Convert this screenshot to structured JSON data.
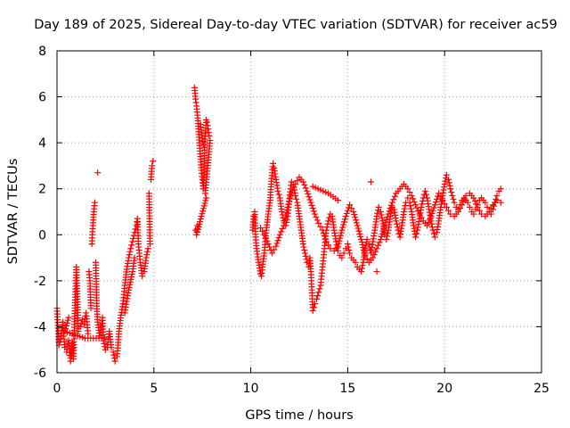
{
  "chart_data": {
    "type": "scatter",
    "title": "Day 189 of 2025, Sidereal Day-to-day VTEC variation (SDTVAR) for receiver ac59",
    "xlabel": "GPS time / hours",
    "ylabel": "SDTVAR / TECUs",
    "xlim": [
      0,
      25
    ],
    "ylim": [
      -6,
      8
    ],
    "xticks": [
      0,
      5,
      10,
      15,
      20,
      25
    ],
    "yticks": [
      -6,
      -4,
      -2,
      0,
      2,
      4,
      6,
      8
    ],
    "grid": true,
    "marker": "+",
    "color": "#ff0000",
    "series_segments": [
      [
        [
          0.0,
          -3.2
        ],
        [
          0.1,
          -4.8
        ],
        [
          0.2,
          -4.5
        ],
        [
          0.3,
          -3.8
        ],
        [
          0.4,
          -4.9
        ],
        [
          0.5,
          -5.1
        ],
        [
          0.6,
          -4.6
        ],
        [
          0.7,
          -5.5
        ],
        [
          0.75,
          -5.3
        ],
        [
          0.8,
          -4.7
        ],
        [
          0.85,
          -5.4
        ],
        [
          0.9,
          -3.9
        ],
        [
          0.95,
          -2.6
        ],
        [
          1.0,
          -1.4
        ],
        [
          1.05,
          -2.8
        ],
        [
          1.1,
          -4.2
        ],
        [
          1.2,
          -4.0
        ],
        [
          1.3,
          -3.7
        ],
        [
          1.4,
          -3.9
        ],
        [
          1.5,
          -3.4
        ],
        [
          1.6,
          -4.3
        ],
        [
          1.65,
          -1.6
        ],
        [
          1.7,
          -2.0
        ],
        [
          1.75,
          -3.2
        ],
        [
          1.8,
          -0.4
        ],
        [
          1.85,
          0.4
        ],
        [
          1.9,
          1.0
        ],
        [
          1.95,
          1.4
        ],
        [
          2.0,
          -1.2
        ],
        [
          2.05,
          -3.1
        ],
        [
          2.1,
          -3.8
        ],
        [
          2.2,
          -4.4
        ],
        [
          2.3,
          -4.0
        ],
        [
          2.35,
          -3.6
        ],
        [
          2.4,
          -4.6
        ],
        [
          2.5,
          -5.0
        ],
        [
          2.6,
          -4.9
        ],
        [
          2.7,
          -4.2
        ],
        [
          2.8,
          -4.9
        ],
        [
          2.9,
          -5.1
        ],
        [
          3.0,
          -5.5
        ],
        [
          3.1,
          -5.3
        ],
        [
          3.15,
          -4.8
        ],
        [
          3.2,
          -4.2
        ],
        [
          3.3,
          -3.5
        ],
        [
          3.4,
          -3.0
        ],
        [
          3.5,
          -2.2
        ],
        [
          3.6,
          -1.5
        ],
        [
          3.7,
          -1.0
        ],
        [
          3.8,
          -0.6
        ],
        [
          3.9,
          -0.3
        ],
        [
          4.0,
          0.1
        ],
        [
          4.1,
          0.4
        ],
        [
          4.15,
          0.7
        ],
        [
          4.2,
          -0.4
        ],
        [
          4.3,
          -1.2
        ],
        [
          4.4,
          -1.8
        ],
        [
          4.5,
          -1.6
        ],
        [
          4.6,
          -1.0
        ],
        [
          4.7,
          -0.6
        ],
        [
          4.75,
          1.8
        ],
        [
          4.8,
          -0.4
        ],
        [
          4.85,
          2.4
        ],
        [
          4.9,
          3.0
        ],
        [
          4.95,
          3.2
        ],
        [
          2.1,
          2.7
        ],
        [
          3.5,
          -3.4
        ],
        [
          3.7,
          -2.4
        ],
        [
          3.9,
          -1.6
        ],
        [
          4.0,
          -1.0
        ],
        [
          0.6,
          -3.6
        ],
        [
          0.4,
          -4.2
        ],
        [
          1.45,
          -4.5
        ],
        [
          2.45,
          -4.5
        ]
      ],
      [
        [
          7.1,
          6.4
        ],
        [
          7.15,
          5.9
        ],
        [
          7.2,
          5.6
        ],
        [
          7.25,
          5.2
        ],
        [
          7.3,
          4.6
        ],
        [
          7.35,
          4.0
        ],
        [
          7.4,
          3.4
        ],
        [
          7.45,
          2.8
        ],
        [
          7.5,
          2.4
        ],
        [
          7.55,
          2.0
        ],
        [
          7.6,
          3.2
        ],
        [
          7.65,
          4.4
        ],
        [
          7.7,
          5.0
        ],
        [
          7.75,
          4.9
        ],
        [
          7.8,
          4.6
        ],
        [
          7.85,
          4.3
        ],
        [
          7.9,
          4.1
        ],
        [
          7.65,
          1.8
        ],
        [
          7.7,
          1.6
        ],
        [
          7.2,
          0.0
        ],
        [
          7.25,
          0.4
        ],
        [
          7.15,
          0.2
        ],
        [
          7.4,
          4.8
        ],
        [
          7.5,
          4.2
        ],
        [
          7.6,
          3.8
        ]
      ],
      [
        [
          10.1,
          0.2
        ],
        [
          10.15,
          0.8
        ],
        [
          10.2,
          1.0
        ],
        [
          10.25,
          -0.1
        ],
        [
          10.3,
          -0.6
        ],
        [
          10.4,
          -1.2
        ],
        [
          10.5,
          -1.7
        ],
        [
          10.55,
          -1.8
        ],
        [
          10.6,
          -1.4
        ],
        [
          10.7,
          -0.8
        ],
        [
          10.8,
          0.2
        ],
        [
          10.9,
          0.9
        ],
        [
          11.0,
          1.5
        ],
        [
          11.05,
          2.2
        ],
        [
          11.1,
          2.7
        ],
        [
          11.15,
          3.1
        ],
        [
          11.2,
          2.9
        ],
        [
          11.3,
          2.4
        ],
        [
          11.4,
          1.9
        ],
        [
          11.5,
          1.6
        ],
        [
          11.6,
          1.0
        ],
        [
          11.7,
          0.6
        ],
        [
          11.8,
          0.4
        ],
        [
          11.9,
          0.8
        ],
        [
          12.0,
          1.6
        ],
        [
          12.05,
          2.0
        ],
        [
          12.1,
          2.3
        ],
        [
          12.2,
          2.2
        ],
        [
          12.3,
          1.7
        ],
        [
          12.4,
          1.4
        ],
        [
          12.5,
          0.8
        ],
        [
          12.6,
          0.2
        ],
        [
          12.7,
          -0.4
        ],
        [
          12.8,
          -0.8
        ],
        [
          12.9,
          -1.2
        ],
        [
          13.0,
          -1.4
        ],
        [
          13.05,
          -1.0
        ],
        [
          13.1,
          -1.6
        ],
        [
          13.15,
          -2.4
        ],
        [
          13.2,
          -3.3
        ],
        [
          13.3,
          -3.0
        ],
        [
          13.4,
          -2.8
        ],
        [
          13.5,
          -2.5
        ],
        [
          13.6,
          -2.2
        ],
        [
          13.7,
          -1.4
        ],
        [
          13.8,
          -0.6
        ],
        [
          13.9,
          0.2
        ],
        [
          14.0,
          0.6
        ],
        [
          14.1,
          0.9
        ],
        [
          14.2,
          0.8
        ],
        [
          14.3,
          0.2
        ],
        [
          14.4,
          -0.3
        ],
        [
          14.5,
          -0.7
        ],
        [
          14.6,
          -0.9
        ],
        [
          14.7,
          -1.0
        ],
        [
          14.8,
          -0.8
        ],
        [
          14.9,
          -0.6
        ],
        [
          15.0,
          -0.4
        ],
        [
          15.1,
          -0.8
        ],
        [
          15.2,
          -1.0
        ],
        [
          15.3,
          -1.1
        ],
        [
          15.4,
          -1.2
        ],
        [
          15.5,
          -1.4
        ],
        [
          15.6,
          -1.5
        ],
        [
          15.7,
          -1.6
        ],
        [
          15.8,
          -1.2
        ],
        [
          15.9,
          -0.6
        ],
        [
          16.0,
          -0.2
        ],
        [
          16.1,
          -0.4
        ],
        [
          16.2,
          -0.8
        ],
        [
          16.3,
          -0.3
        ],
        [
          16.4,
          0.2
        ],
        [
          16.5,
          0.8
        ],
        [
          16.6,
          1.2
        ],
        [
          16.7,
          1.0
        ],
        [
          16.8,
          0.6
        ],
        [
          16.9,
          0.0
        ],
        [
          17.0,
          -0.2
        ],
        [
          17.1,
          0.2
        ],
        [
          17.2,
          0.8
        ],
        [
          17.3,
          1.2
        ],
        [
          17.4,
          1.1
        ],
        [
          17.5,
          0.6
        ],
        [
          17.6,
          0.2
        ],
        [
          17.7,
          -0.1
        ],
        [
          17.8,
          0.4
        ],
        [
          17.9,
          1.0
        ],
        [
          18.0,
          1.4
        ],
        [
          18.1,
          1.6
        ],
        [
          18.2,
          1.4
        ],
        [
          18.3,
          1.0
        ],
        [
          18.4,
          0.4
        ],
        [
          18.5,
          -0.1
        ],
        [
          18.6,
          0.2
        ],
        [
          18.7,
          0.7
        ],
        [
          18.8,
          1.2
        ],
        [
          18.9,
          1.6
        ],
        [
          19.0,
          1.9
        ],
        [
          19.1,
          1.6
        ],
        [
          19.2,
          1.1
        ],
        [
          19.3,
          0.6
        ],
        [
          19.4,
          0.2
        ],
        [
          19.5,
          -0.1
        ],
        [
          19.6,
          0.1
        ],
        [
          19.7,
          0.6
        ],
        [
          19.8,
          1.2
        ],
        [
          19.9,
          1.7
        ],
        [
          20.0,
          2.2
        ],
        [
          20.1,
          2.6
        ],
        [
          20.2,
          2.4
        ],
        [
          20.3,
          2.0
        ],
        [
          20.4,
          1.7
        ],
        [
          20.5,
          1.4
        ],
        [
          20.6,
          1.2
        ],
        [
          20.7,
          1.1
        ],
        [
          20.8,
          1.3
        ],
        [
          20.9,
          1.5
        ],
        [
          21.0,
          1.6
        ],
        [
          21.1,
          1.5
        ],
        [
          21.2,
          1.4
        ],
        [
          21.3,
          1.2
        ],
        [
          21.4,
          1.0
        ],
        [
          21.5,
          0.9
        ],
        [
          21.6,
          1.1
        ],
        [
          21.7,
          1.3
        ],
        [
          21.8,
          1.5
        ],
        [
          21.9,
          1.6
        ],
        [
          22.0,
          1.5
        ],
        [
          22.1,
          1.4
        ],
        [
          22.2,
          1.2
        ],
        [
          22.3,
          1.0
        ],
        [
          22.4,
          0.9
        ],
        [
          22.5,
          1.1
        ],
        [
          22.6,
          1.4
        ],
        [
          22.7,
          1.7
        ],
        [
          22.8,
          1.9
        ],
        [
          22.9,
          2.0
        ]
      ],
      [
        [
          10.5,
          0.3
        ],
        [
          10.7,
          0.0
        ],
        [
          10.9,
          -0.4
        ],
        [
          11.1,
          -0.8
        ],
        [
          11.3,
          -0.5
        ],
        [
          11.5,
          0.0
        ],
        [
          11.7,
          0.4
        ],
        [
          11.9,
          1.2
        ],
        [
          12.1,
          1.8
        ],
        [
          12.3,
          2.2
        ],
        [
          12.5,
          2.5
        ],
        [
          12.7,
          2.3
        ],
        [
          12.9,
          1.9
        ],
        [
          13.1,
          1.4
        ],
        [
          13.3,
          0.9
        ],
        [
          13.5,
          0.5
        ],
        [
          13.7,
          0.2
        ],
        [
          13.9,
          -0.3
        ],
        [
          14.1,
          -0.6
        ],
        [
          14.3,
          -0.7
        ],
        [
          14.5,
          -0.5
        ],
        [
          14.7,
          0.2
        ],
        [
          14.9,
          0.8
        ],
        [
          15.1,
          1.3
        ],
        [
          15.3,
          1.0
        ],
        [
          15.5,
          0.4
        ],
        [
          15.7,
          -0.2
        ],
        [
          15.9,
          -0.9
        ],
        [
          16.1,
          -1.2
        ],
        [
          16.3,
          -1.0
        ],
        [
          16.5,
          -0.6
        ],
        [
          16.7,
          -0.2
        ],
        [
          16.9,
          0.4
        ],
        [
          17.1,
          0.9
        ],
        [
          17.3,
          1.4
        ],
        [
          17.5,
          1.8
        ],
        [
          17.7,
          2.0
        ],
        [
          17.9,
          2.2
        ],
        [
          18.1,
          2.0
        ],
        [
          18.3,
          1.7
        ],
        [
          18.5,
          1.3
        ],
        [
          18.7,
          0.9
        ],
        [
          18.9,
          0.6
        ],
        [
          19.1,
          0.4
        ],
        [
          19.3,
          0.8
        ],
        [
          19.5,
          1.3
        ],
        [
          19.7,
          1.8
        ],
        [
          19.9,
          1.5
        ],
        [
          20.1,
          1.2
        ],
        [
          20.3,
          0.9
        ],
        [
          20.5,
          0.8
        ],
        [
          20.7,
          1.0
        ],
        [
          20.9,
          1.3
        ],
        [
          21.1,
          1.7
        ],
        [
          21.3,
          1.8
        ],
        [
          21.5,
          1.6
        ],
        [
          21.7,
          1.2
        ],
        [
          21.9,
          0.9
        ],
        [
          22.1,
          0.8
        ],
        [
          22.3,
          1.0
        ],
        [
          22.5,
          1.3
        ],
        [
          22.7,
          1.5
        ],
        [
          22.9,
          1.4
        ],
        [
          13.2,
          2.1
        ],
        [
          14.0,
          1.8
        ],
        [
          14.5,
          1.5
        ],
        [
          16.5,
          -1.6
        ],
        [
          16.2,
          2.3
        ]
      ]
    ]
  }
}
